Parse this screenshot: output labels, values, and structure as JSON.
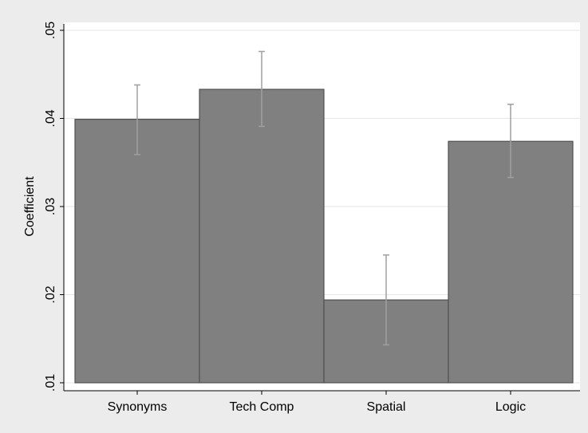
{
  "chart_data": {
    "type": "bar",
    "y_label": "Coefficient",
    "categories": [
      "Synonyms",
      "Tech Comp",
      "Spatial",
      "Logic"
    ],
    "values": [
      0.0399,
      0.0433,
      0.0194,
      0.0374
    ],
    "ci_low": [
      0.0359,
      0.0391,
      0.0143,
      0.0333
    ],
    "ci_high": [
      0.0438,
      0.0476,
      0.0245,
      0.0416
    ],
    "color": "#808080",
    "error_color": "#a0a0a0",
    "ylim": [
      0.01,
      0.05
    ],
    "yticks": [
      {
        "value": 0.01,
        "label": ".01"
      },
      {
        "value": 0.02,
        "label": ".02"
      },
      {
        "value": 0.03,
        "label": ".03"
      },
      {
        "value": 0.04,
        "label": ".04"
      },
      {
        "value": 0.05,
        "label": ".05"
      }
    ],
    "grid": true
  }
}
